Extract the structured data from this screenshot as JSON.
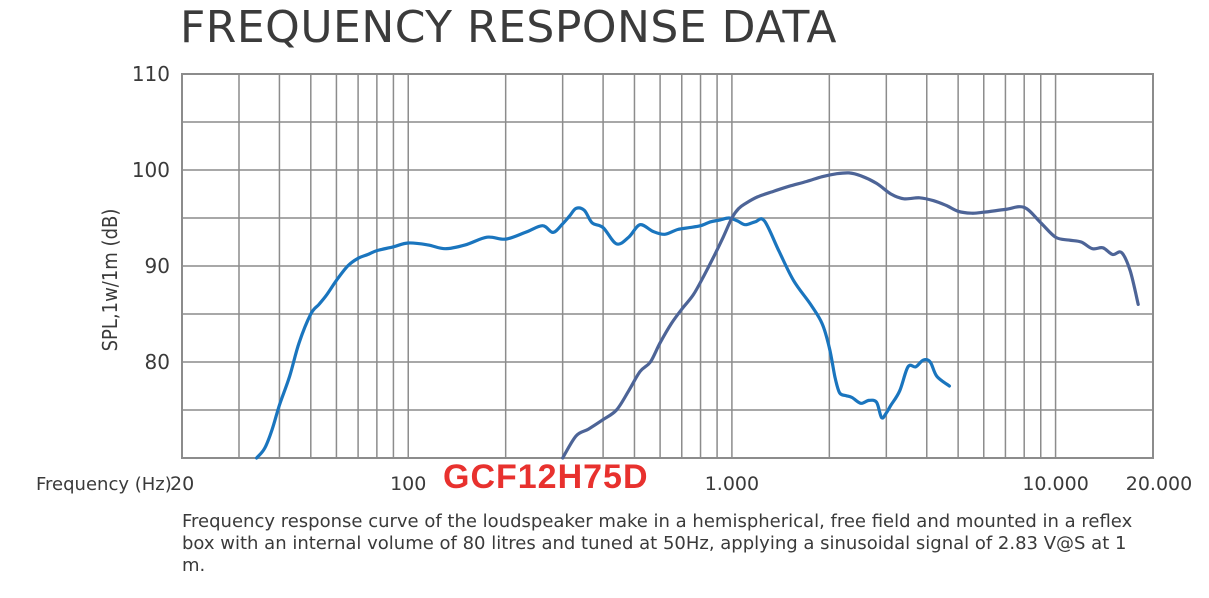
{
  "header": {
    "title": "FREQUENCY RESPONSE DATA"
  },
  "model": "GCF12H75D",
  "caption": "Frequency response curve of the loudspeaker make in a hemispherical, free field and mounted in a reflex box with an internal volume of 80 litres and tuned at 50Hz, applying a sinusoidal signal of 2.83 V@S at 1 m.",
  "colors": {
    "series_1": "#1a75be",
    "series_2": "#4d6497",
    "grid": "#8c8c8c",
    "model": "#e8312e"
  },
  "chart_data": {
    "type": "line",
    "title": "FREQUENCY RESPONSE DATA",
    "xlabel": "Frequency (Hz)",
    "ylabel": "SPL,1w/1m (dB)",
    "xscale": "log",
    "xlim": [
      20,
      20000
    ],
    "ylim": [
      70,
      110
    ],
    "grid": true,
    "x_tick_labels": [
      {
        "value": 20,
        "label": "20"
      },
      {
        "value": 100,
        "label": "100"
      },
      {
        "value": 1000,
        "label": "1.000"
      },
      {
        "value": 10000,
        "label": "10.000"
      },
      {
        "value": 20000,
        "label": "20.000"
      }
    ],
    "y_ticks": [
      80,
      90,
      100,
      110
    ],
    "series": [
      {
        "x": [
          34,
          36,
          38,
          40,
          43,
          46,
          50,
          53,
          56,
          60,
          65,
          70,
          75,
          80,
          90,
          100,
          115,
          130,
          150,
          175,
          200,
          230,
          260,
          280,
          300,
          315,
          330,
          350,
          370,
          400,
          440,
          480,
          520,
          570,
          620,
          680,
          740,
          800,
          860,
          920,
          980,
          1040,
          1100,
          1180,
          1260,
          1400,
          1550,
          1750,
          1900,
          2000,
          2080,
          2150,
          2250,
          2350,
          2500,
          2650,
          2800,
          2900,
          3000,
          3100,
          3300,
          3500,
          3700,
          3900,
          4100,
          4300,
          4700
        ],
        "y": [
          70,
          71,
          73,
          75.5,
          78.5,
          82,
          85,
          86,
          87,
          88.5,
          90,
          90.8,
          91.2,
          91.6,
          92,
          92.4,
          92.2,
          91.8,
          92.2,
          93,
          92.8,
          93.5,
          94.2,
          93.5,
          94.4,
          95.2,
          96,
          95.8,
          94.5,
          94,
          92.3,
          93,
          94.3,
          93.6,
          93.3,
          93.8,
          94,
          94.2,
          94.6,
          94.8,
          95,
          94.7,
          94.3,
          94.6,
          94.7,
          91.5,
          88.5,
          86,
          84,
          81.5,
          78.5,
          76.8,
          76.5,
          76.3,
          75.7,
          76,
          75.8,
          74.2,
          74.7,
          75.5,
          77,
          79.5,
          79.5,
          80.2,
          80,
          78.5,
          77.5
        ]
      },
      {
        "x": [
          300,
          330,
          360,
          400,
          440,
          480,
          520,
          560,
          600,
          650,
          700,
          760,
          820,
          880,
          940,
          1000,
          1050,
          1100,
          1200,
          1350,
          1500,
          1700,
          1900,
          2100,
          2300,
          2500,
          2800,
          3100,
          3400,
          3800,
          4200,
          4600,
          5000,
          5500,
          6000,
          7000,
          8000,
          9000,
          10000,
          11000,
          12000,
          13000,
          14000,
          15000,
          16000,
          17000,
          18000
        ],
        "y": [
          70,
          72.3,
          73,
          74,
          75,
          77,
          79,
          80,
          82,
          84,
          85.5,
          87,
          89,
          91,
          93,
          95,
          96,
          96.5,
          97.2,
          97.8,
          98.3,
          98.8,
          99.3,
          99.6,
          99.7,
          99.4,
          98.6,
          97.5,
          97,
          97.1,
          96.8,
          96.3,
          95.7,
          95.5,
          95.6,
          95.9,
          96.1,
          94.5,
          93,
          92.7,
          92.5,
          91.8,
          91.9,
          91.2,
          91.4,
          89.5,
          86
        ]
      }
    ]
  }
}
